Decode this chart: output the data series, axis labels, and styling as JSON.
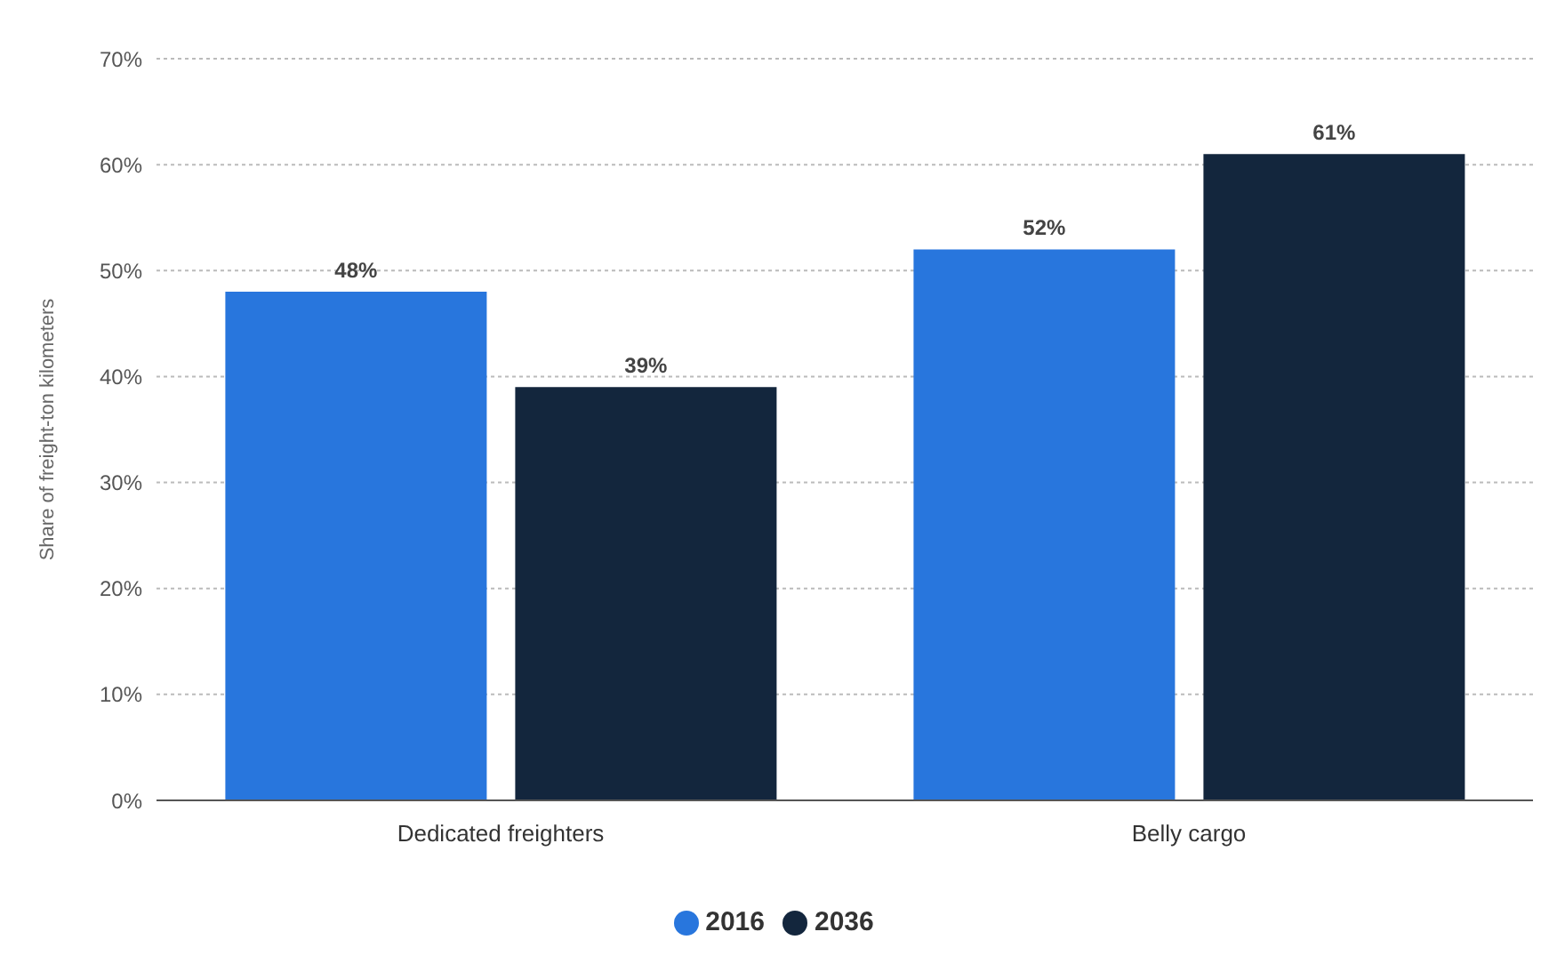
{
  "chart_data": {
    "type": "bar",
    "ylabel": "Share of freight-ton kilometers",
    "categories": [
      "Dedicated freighters",
      "Belly cargo"
    ],
    "series": [
      {
        "name": "2016",
        "color": "#2876dd",
        "values": [
          48,
          52
        ],
        "value_labels": [
          "48%",
          "52%"
        ]
      },
      {
        "name": "2036",
        "color": "#13263d",
        "values": [
          39,
          61
        ],
        "value_labels": [
          "39%",
          "61%"
        ]
      }
    ],
    "ylim": [
      0,
      70
    ],
    "yticks": [
      {
        "value": 0,
        "label": "0%"
      },
      {
        "value": 10,
        "label": "10%"
      },
      {
        "value": 20,
        "label": "20%"
      },
      {
        "value": 30,
        "label": "30%"
      },
      {
        "value": 40,
        "label": "40%"
      },
      {
        "value": 50,
        "label": "50%"
      },
      {
        "value": 60,
        "label": "60%"
      },
      {
        "value": 70,
        "label": "70%"
      }
    ],
    "grid": "y",
    "legend": "bottom"
  }
}
